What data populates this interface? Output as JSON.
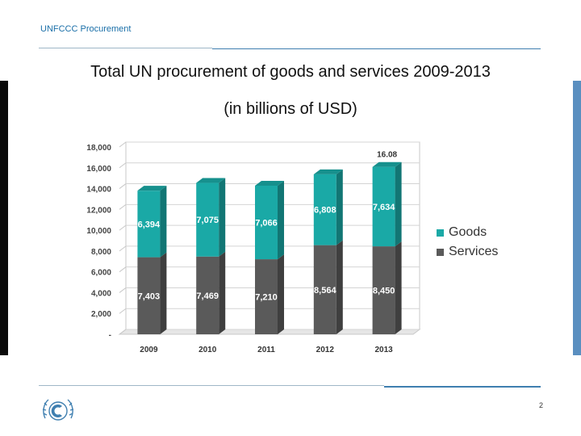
{
  "header": {
    "label": "UNFCCC Procurement"
  },
  "title": "Total UN procurement of goods and services 2009-2013",
  "subtitle": "(in billions of USD)",
  "page_number": "2",
  "colors": {
    "goods": "#1aa9a6",
    "services": "#5a5a5a",
    "accent": "#3f7fb0"
  },
  "logo_icon": "unfccc-emblem-icon",
  "chart_data": {
    "type": "bar",
    "stacked": true,
    "title": "Total UN procurement of goods and services 2009-2013",
    "subtitle": "(in billions of USD)",
    "categories": [
      "2009",
      "2010",
      "2011",
      "2012",
      "2013"
    ],
    "series": [
      {
        "name": "Services",
        "values": [
          7403,
          7469,
          7210,
          8564,
          8450
        ],
        "labels": [
          "7,403",
          "7,469",
          "7,210",
          "8,564",
          "8,450"
        ],
        "color": "#5a5a5a"
      },
      {
        "name": "Goods",
        "values": [
          6394,
          7075,
          7066,
          6808,
          7634
        ],
        "labels": [
          "6,394",
          "7,075",
          "7,066",
          "6,808",
          "7,634"
        ],
        "color": "#1aa9a6"
      }
    ],
    "annotations": [
      {
        "category": "2013",
        "text": "16.08"
      }
    ],
    "yticks": [
      "-",
      "2,000",
      "4,000",
      "6,000",
      "8,000",
      "10,000",
      "12,000",
      "14,000",
      "16,000",
      "18,000"
    ],
    "ylim": [
      0,
      18000
    ],
    "grid": true,
    "legend": {
      "placement": "right",
      "entries": [
        "Goods",
        "Services"
      ]
    }
  }
}
